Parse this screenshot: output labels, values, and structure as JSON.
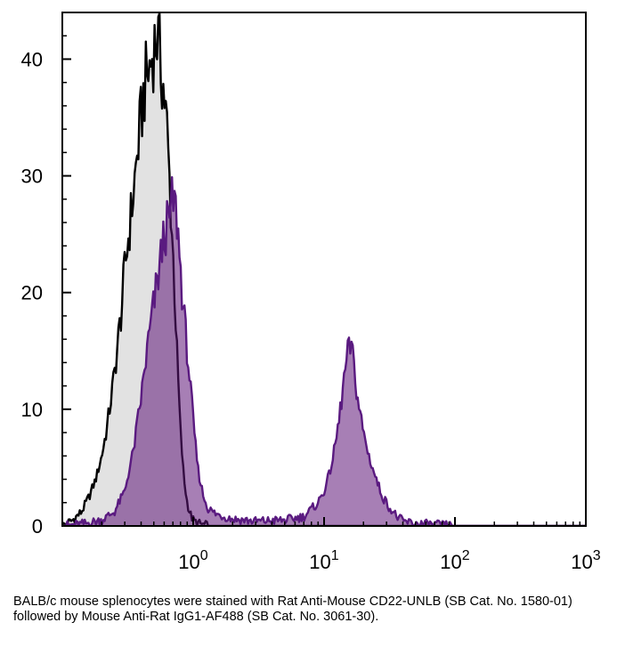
{
  "chart_data": {
    "type": "area",
    "title": "",
    "xlabel": "",
    "ylabel": "",
    "x_scale": "log",
    "xlim": [
      0.1,
      1000
    ],
    "ylim": [
      0,
      44
    ],
    "y_ticks": [
      0,
      10,
      20,
      30,
      40
    ],
    "y_tick_labels": [
      "0",
      "10",
      "20",
      "30",
      "40"
    ],
    "x_ticks": [
      {
        "value": 1,
        "base": "10",
        "exp": "0"
      },
      {
        "value": 10,
        "base": "10",
        "exp": "1"
      },
      {
        "value": 100,
        "base": "10",
        "exp": "2"
      },
      {
        "value": 1000,
        "base": "10",
        "exp": "3"
      }
    ],
    "grid": false,
    "series": [
      {
        "color": "#000000",
        "fill": "#e2e2e2",
        "x": [
          0.1,
          0.12,
          0.14,
          0.16,
          0.18,
          0.2,
          0.22,
          0.25,
          0.28,
          0.3,
          0.33,
          0.36,
          0.4,
          0.43,
          0.46,
          0.5,
          0.53,
          0.56,
          0.6,
          0.63,
          0.67,
          0.71,
          0.75,
          0.8,
          0.85,
          0.9,
          0.95,
          1.0,
          1.05,
          1.1,
          1.2,
          1.3,
          1.5,
          2.0,
          5.0
        ],
        "y": [
          0,
          0.5,
          1.2,
          2.5,
          4.0,
          6.0,
          8.5,
          13,
          18,
          22,
          26,
          30,
          35,
          38,
          39,
          41,
          42,
          40,
          37,
          34,
          28,
          22,
          15,
          8,
          4,
          2,
          1,
          0.5,
          0.3,
          0.2,
          0.1,
          0,
          0,
          0,
          0
        ]
      },
      {
        "color": "#5a1a80",
        "fill": "#5e1578",
        "x": [
          0.1,
          0.15,
          0.2,
          0.25,
          0.3,
          0.35,
          0.4,
          0.45,
          0.5,
          0.55,
          0.6,
          0.65,
          0.7,
          0.75,
          0.8,
          0.85,
          0.9,
          0.95,
          1.0,
          1.05,
          1.1,
          1.2,
          1.3,
          1.5,
          2.0,
          3.0,
          5.0,
          7.0,
          9.0,
          10.0,
          11.0,
          12.0,
          13.0,
          14.0,
          15.0,
          16.0,
          17.0,
          18.0,
          20.0,
          22.0,
          25.0,
          28.0,
          32.0,
          36.0,
          40.0,
          50.0,
          70.0,
          100.0
        ],
        "y": [
          0,
          0.2,
          0.5,
          1.2,
          3.0,
          6.5,
          11,
          15.5,
          19,
          22,
          25,
          26,
          28,
          26.5,
          22,
          18,
          15,
          12,
          9,
          6.5,
          4.5,
          2.5,
          1.5,
          1.0,
          0.6,
          0.4,
          0.5,
          0.8,
          2.0,
          3.0,
          4.5,
          6.5,
          9.0,
          12,
          14.5,
          15.5,
          13.5,
          11,
          8,
          6,
          4,
          2.5,
          1.5,
          0.8,
          0.4,
          0.2,
          0.1,
          0
        ]
      }
    ]
  },
  "caption": "BALB/c mouse splenocytes were stained with Rat Anti-Mouse CD22-UNLB (SB Cat. No. 1580-01) followed by Mouse Anti-Rat IgG1-AF488 (SB Cat. No. 3061-30)."
}
